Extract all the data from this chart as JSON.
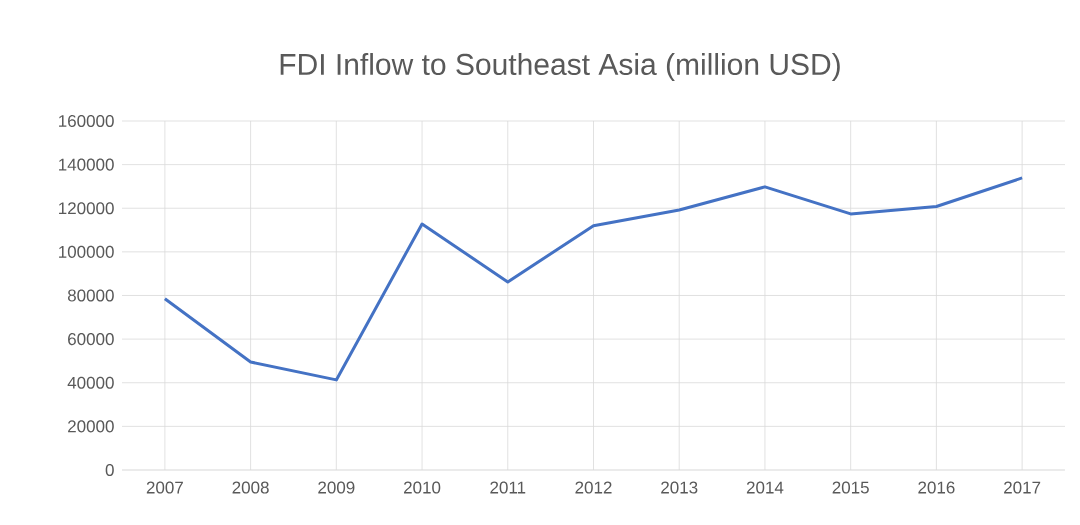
{
  "chart_data": {
    "type": "line",
    "title": "FDI Inflow to Southeast Asia (million USD)",
    "categories": [
      "2007",
      "2008",
      "2009",
      "2010",
      "2011",
      "2012",
      "2013",
      "2014",
      "2015",
      "2016",
      "2017"
    ],
    "series": [
      {
        "color": "#4472c4",
        "values": [
          78500,
          49500,
          41300,
          112800,
          86200,
          112000,
          119200,
          129800,
          117400,
          120800,
          133900
        ]
      }
    ],
    "ylim": [
      0,
      160000
    ],
    "yticks": [
      0,
      20000,
      40000,
      60000,
      80000,
      100000,
      120000,
      140000,
      160000
    ],
    "grid": true,
    "legend": false,
    "marker": "none",
    "line_style": "solid"
  }
}
